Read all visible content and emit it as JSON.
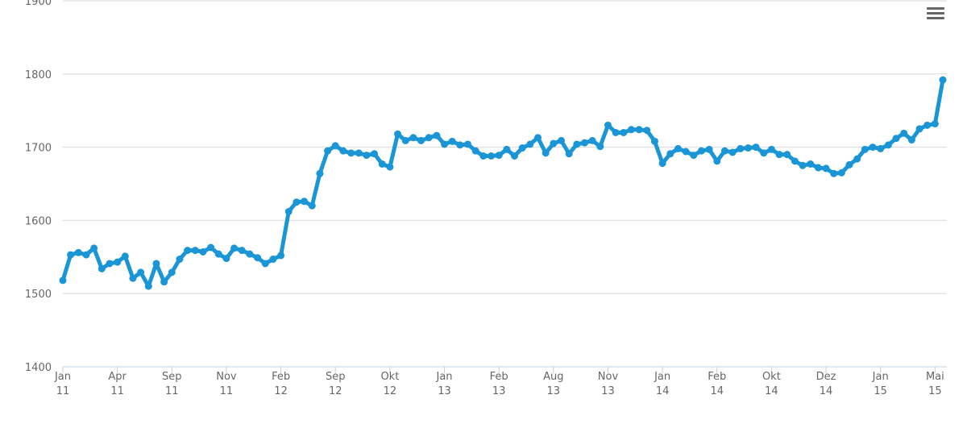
{
  "chart_data": {
    "type": "line",
    "categories": [
      [
        "Jan",
        "11"
      ],
      null,
      null,
      null,
      null,
      null,
      null,
      [
        "Apr",
        "11"
      ],
      null,
      null,
      null,
      null,
      null,
      null,
      [
        "Sep",
        "11"
      ],
      null,
      null,
      null,
      null,
      null,
      null,
      [
        "Nov",
        "11"
      ],
      null,
      null,
      null,
      null,
      null,
      null,
      [
        "Feb",
        "12"
      ],
      null,
      null,
      null,
      null,
      null,
      null,
      [
        "Sep",
        "12"
      ],
      null,
      null,
      null,
      null,
      null,
      null,
      [
        "Okt",
        "12"
      ],
      null,
      null,
      null,
      null,
      null,
      null,
      [
        "Jan",
        "13"
      ],
      null,
      null,
      null,
      null,
      null,
      null,
      [
        "Feb",
        "13"
      ],
      null,
      null,
      null,
      null,
      null,
      null,
      [
        "Aug",
        "13"
      ],
      null,
      null,
      null,
      null,
      null,
      null,
      [
        "Nov",
        "13"
      ],
      null,
      null,
      null,
      null,
      null,
      null,
      [
        "Jan",
        "14"
      ],
      null,
      null,
      null,
      null,
      null,
      null,
      [
        "Feb",
        "14"
      ],
      null,
      null,
      null,
      null,
      null,
      null,
      [
        "Okt",
        "14"
      ],
      null,
      null,
      null,
      null,
      null,
      null,
      [
        "Dez",
        "14"
      ],
      null,
      null,
      null,
      null,
      null,
      null,
      [
        "Jan",
        "15"
      ],
      null,
      null,
      null,
      null,
      null,
      null,
      [
        "Mai",
        "15"
      ],
      null
    ],
    "series": [
      {
        "color": "#1a95d5",
        "values": [
          1518,
          1553,
          1556,
          1553,
          1562,
          1534,
          1541,
          1543,
          1551,
          1521,
          1529,
          1510,
          1541,
          1516,
          1529,
          1547,
          1559,
          1559,
          1557,
          1563,
          1554,
          1548,
          1562,
          1559,
          1554,
          1549,
          1541,
          1547,
          1552,
          1612,
          1625,
          1626,
          1620,
          1664,
          1695,
          1702,
          1695,
          1692,
          1692,
          1689,
          1691,
          1677,
          1673,
          1718,
          1709,
          1713,
          1709,
          1713,
          1716,
          1704,
          1708,
          1703,
          1704,
          1695,
          1688,
          1688,
          1689,
          1697,
          1688,
          1699,
          1704,
          1713,
          1692,
          1705,
          1709,
          1691,
          1704,
          1706,
          1709,
          1701,
          1730,
          1720,
          1720,
          1724,
          1724,
          1723,
          1708,
          1678,
          1691,
          1698,
          1694,
          1689,
          1695,
          1697,
          1681,
          1695,
          1693,
          1698,
          1699,
          1700,
          1692,
          1697,
          1690,
          1690,
          1681,
          1675,
          1677,
          1672,
          1671,
          1664,
          1665,
          1676,
          1684,
          1697,
          1700,
          1698,
          1703,
          1712,
          1719,
          1710,
          1725,
          1730,
          1732,
          1792
        ]
      }
    ],
    "ylim": [
      1400,
      1900
    ],
    "yticks": [
      1400,
      1500,
      1600,
      1700,
      1800,
      1900
    ],
    "grid": true
  }
}
